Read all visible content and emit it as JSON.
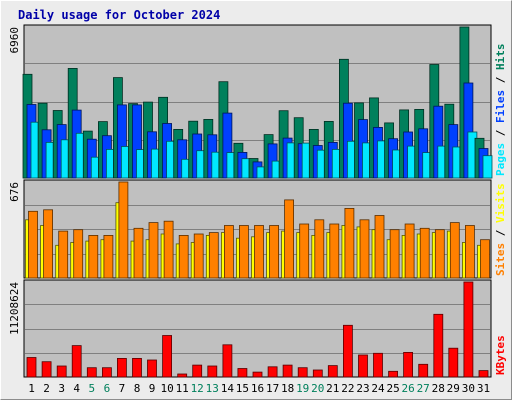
{
  "title": "Daily usage for October 2024",
  "chart_data": {
    "type": "bar",
    "title": "Daily usage for October 2024",
    "x": [
      "1",
      "2",
      "3",
      "4",
      "5",
      "6",
      "7",
      "8",
      "9",
      "10",
      "11",
      "12",
      "13",
      "14",
      "15",
      "16",
      "17",
      "18",
      "19",
      "20",
      "21",
      "22",
      "23",
      "24",
      "25",
      "26",
      "27",
      "28",
      "29",
      "30",
      "31"
    ],
    "weekend_days": [
      "5",
      "6",
      "12",
      "13",
      "19",
      "20",
      "26",
      "27"
    ],
    "panels": [
      {
        "id": "hits-files-pages",
        "ymax_label": "6960",
        "ylim": [
          0,
          6960
        ],
        "side_labels": [
          {
            "text": "Pages",
            "color": "#00e8ff"
          },
          {
            "text": " / ",
            "color": "#000000"
          },
          {
            "text": "Files",
            "color": "#0040ff"
          },
          {
            "text": " / ",
            "color": "#000000"
          },
          {
            "text": "Hits",
            "color": "#00805c"
          }
        ],
        "series": [
          {
            "name": "Hits",
            "color": "#00805c",
            "values": [
              4780,
              3450,
              3110,
              5050,
              2160,
              2600,
              4630,
              3430,
              3500,
              3720,
              2240,
              2620,
              2700,
              4440,
              1600,
              900,
              2000,
              3100,
              2780,
              2240,
              2610,
              5470,
              3460,
              3690,
              2540,
              3140,
              3160,
              5230,
              3400,
              6960,
              1830
            ]
          },
          {
            "name": "Files",
            "color": "#0040ff",
            "values": [
              3390,
              2220,
              2460,
              3130,
              1790,
              1950,
              3370,
              3370,
              2130,
              2510,
              1760,
              2030,
              1990,
              2990,
              1180,
              740,
              1570,
              1840,
              1580,
              1500,
              1640,
              3450,
              2690,
              2330,
              1810,
              2120,
              2270,
              3310,
              2460,
              4380,
              1360
            ]
          },
          {
            "name": "Pages",
            "color": "#00e8ff",
            "values": [
              2570,
              1640,
              1760,
              2060,
              960,
              1320,
              1450,
              1310,
              1330,
              1690,
              860,
              1260,
              1190,
              1170,
              890,
              510,
              780,
              1620,
              1610,
              1280,
              1320,
              1690,
              1620,
              1710,
              1290,
              1470,
              1170,
              1470,
              1430,
              2120,
              1030
            ]
          }
        ]
      },
      {
        "id": "visits-sites",
        "ymax_label": "676",
        "ylim": [
          0,
          676
        ],
        "side_labels": [
          {
            "text": "Sites",
            "color": "#ff8000"
          },
          {
            "text": " / ",
            "color": "#000000"
          },
          {
            "text": "Visits",
            "color": "#ffff00"
          }
        ],
        "series": [
          {
            "name": "Visits",
            "color": "#ffff00",
            "values": [
              410,
              370,
              230,
              250,
              260,
              270,
              530,
              260,
              270,
              310,
              240,
              250,
              300,
              320,
              280,
              290,
              320,
              330,
              320,
              300,
              320,
              370,
              360,
              340,
              270,
              300,
              310,
              320,
              330,
              250,
              230
            ]
          },
          {
            "name": "Sites",
            "color": "#ff8000",
            "values": [
              470,
              480,
              330,
              340,
              300,
              300,
              676,
              350,
              390,
              400,
              300,
              310,
              320,
              370,
              370,
              370,
              370,
              550,
              380,
              410,
              380,
              490,
              410,
              440,
              340,
              380,
              350,
              340,
              390,
              370,
              270
            ]
          }
        ]
      },
      {
        "id": "kbytes",
        "ymax_label": "11208624",
        "ylim": [
          0,
          11208624
        ],
        "side_labels": [
          {
            "text": "KBytes",
            "color": "#ff0000"
          }
        ],
        "series": [
          {
            "name": "KBytes",
            "color": "#ff0000",
            "values": [
              2300000,
              1800000,
              1300000,
              3700000,
              1100000,
              1100000,
              2200000,
              2200000,
              2000000,
              4900000,
              350000,
              1400000,
              1300000,
              3800000,
              1000000,
              580000,
              1200000,
              1400000,
              1100000,
              830000,
              1350000,
              6100000,
              2600000,
              2800000,
              670000,
              2900000,
              1500000,
              7400000,
              3400000,
              11208624,
              760000
            ]
          }
        ]
      }
    ]
  },
  "colors": {
    "plot_bg": "#c0c0c0",
    "gridline": "#808080",
    "weekday_label": "#000000",
    "weekend_label": "#00805c"
  }
}
